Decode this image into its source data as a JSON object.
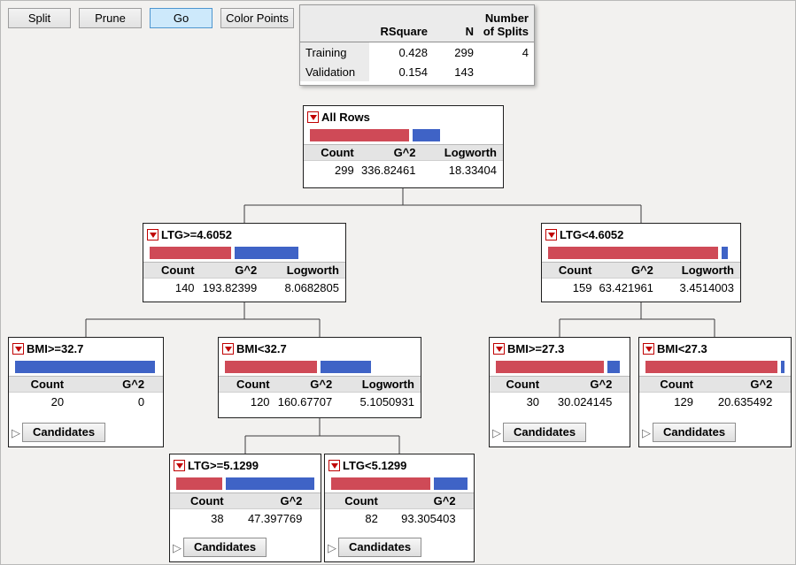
{
  "toolbar": {
    "split": "Split",
    "prune": "Prune",
    "go": "Go",
    "color_points": "Color Points"
  },
  "summary": {
    "columns": {
      "rsquare": "RSquare",
      "n": "N",
      "splits": "Number of Splits"
    },
    "rows": [
      {
        "label": "Training",
        "rsquare": "0.428",
        "n": "299",
        "splits": "4"
      },
      {
        "label": "Validation",
        "rsquare": "0.154",
        "n": "143",
        "splits": ""
      }
    ]
  },
  "labels": {
    "count": "Count",
    "g2": "G^2",
    "logworth": "Logworth",
    "candidates": "Candidates",
    "disclosure": "▷"
  },
  "tree": {
    "all_rows": {
      "title": "All Rows",
      "count": "299",
      "g2": "336.82461",
      "logworth": "18.33404",
      "bar": {
        "red": 112,
        "blue": 31
      }
    },
    "ltg_ge_46": {
      "title": "LTG>=4.6052",
      "count": "140",
      "g2": "193.82399",
      "logworth": "8.0682805",
      "bar": {
        "red": 92,
        "blue": 72
      }
    },
    "ltg_lt_46": {
      "title": "LTG<4.6052",
      "count": "159",
      "g2": "63.421961",
      "logworth": "3.4514003",
      "bar": {
        "red": 192,
        "blue": 7
      }
    },
    "bmi_ge_327": {
      "title": "BMI>=32.7",
      "count": "20",
      "g2": "0",
      "bar": {
        "red": 0,
        "blue": 158
      }
    },
    "bmi_lt_327": {
      "title": "BMI<32.7",
      "count": "120",
      "g2": "160.67707",
      "logworth": "5.1050931",
      "bar": {
        "red": 104,
        "blue": 57
      }
    },
    "bmi_ge_273": {
      "title": "BMI>=27.3",
      "count": "30",
      "g2": "30.024145",
      "bar": {
        "red": 122,
        "blue": 14
      }
    },
    "bmi_lt_273": {
      "title": "BMI<27.3",
      "count": "129",
      "g2": "20.635492",
      "bar": {
        "red": 150,
        "blue": 4
      }
    },
    "ltg_ge_51": {
      "title": "LTG>=5.1299",
      "count": "38",
      "g2": "47.397769",
      "bar": {
        "red": 52,
        "blue": 100
      }
    },
    "ltg_lt_51": {
      "title": "LTG<5.1299",
      "count": "82",
      "g2": "93.305403",
      "bar": {
        "red": 112,
        "blue": 38
      }
    }
  },
  "colors": {
    "bar_red": "#cf4a57",
    "bar_blue": "#3f63c6",
    "hotspot_red": "#c00000",
    "go_button_bg": "#cde9fb",
    "go_button_border": "#4e96cf"
  }
}
